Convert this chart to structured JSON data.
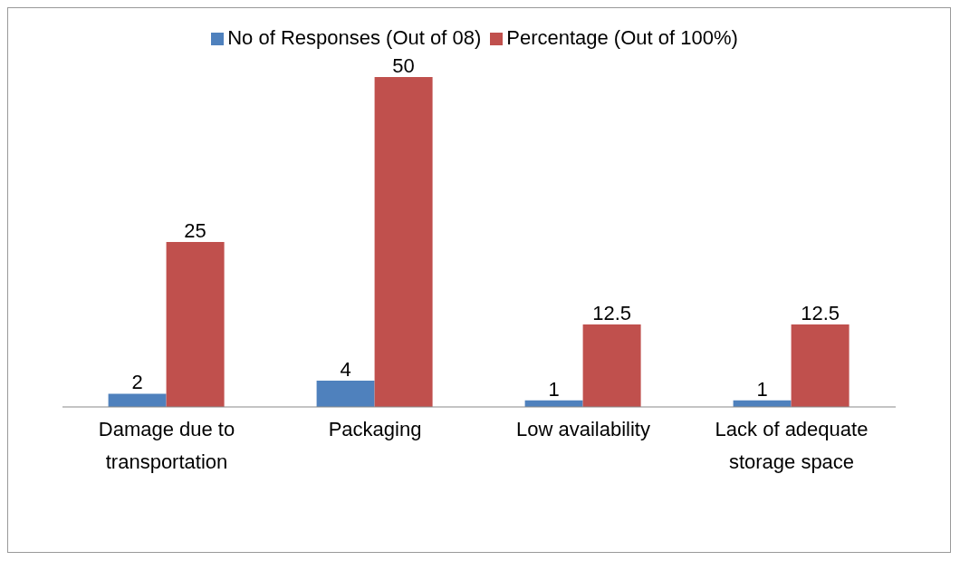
{
  "chart_data": {
    "type": "bar",
    "categories": [
      "Damage due to transportation",
      "Packaging",
      "Low availability",
      "Lack of adequate storage space"
    ],
    "series": [
      {
        "name": "No of Responses (Out of 08)",
        "color": "#4f81bd",
        "values": [
          2,
          4,
          1,
          1
        ]
      },
      {
        "name": "Percentage (Out of 100%)",
        "color": "#c0504d",
        "values": [
          25,
          50,
          12.5,
          12.5
        ]
      }
    ],
    "data_labels": true,
    "legend": "top",
    "grid": false
  }
}
